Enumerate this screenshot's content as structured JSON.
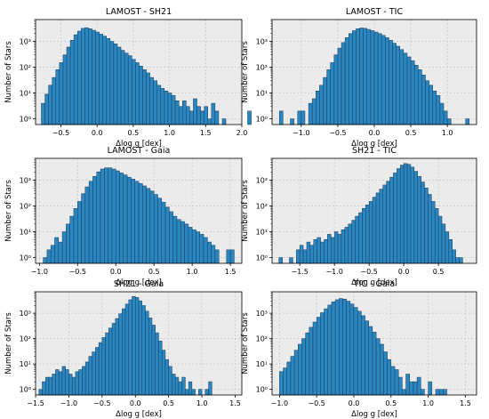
{
  "chart_data": [
    {
      "type": "bar",
      "title": "LAMOST - SH21",
      "xlabel": "Δlog g [dex]",
      "ylabel": "Number of Stars",
      "yscale": "log",
      "xlim": [
        -0.85,
        2.0
      ],
      "ylim": [
        0.6,
        7000
      ],
      "xticks": [
        -0.5,
        0.0,
        0.5,
        1.0,
        1.5,
        2.0
      ],
      "x_tick_labels": [
        "−0.5",
        "0.0",
        "0.5",
        "1.0",
        "1.5",
        "2.0"
      ],
      "y_tick_labels": [
        "10⁰",
        "10¹",
        "10²",
        "10³"
      ],
      "bin_start": -0.77,
      "bin_width": 0.05,
      "values": [
        4,
        9,
        20,
        40,
        80,
        150,
        300,
        600,
        1100,
        1800,
        2500,
        3200,
        3400,
        3100,
        2700,
        2300,
        1900,
        1600,
        1300,
        1000,
        800,
        600,
        450,
        350,
        280,
        200,
        150,
        110,
        80,
        60,
        40,
        30,
        20,
        15,
        12,
        10,
        8,
        5,
        3,
        5,
        3,
        2,
        6,
        3,
        2,
        3,
        1,
        4,
        2,
        0,
        1,
        0,
        0,
        0,
        0,
        0,
        0,
        2
      ]
    },
    {
      "type": "bar",
      "title": "LAMOST - TIC",
      "xlabel": "Δlog g [dex]",
      "ylabel": "Number of Stars",
      "yscale": "log",
      "xlim": [
        -1.4,
        1.4
      ],
      "ylim": [
        0.6,
        7000
      ],
      "xticks": [
        -1.0,
        -0.5,
        0.0,
        0.5,
        1.0
      ],
      "x_tick_labels": [
        "−1.0",
        "−0.5",
        "0.0",
        "0.5",
        "1.0"
      ],
      "y_tick_labels": [
        "10⁰",
        "10¹",
        "10²",
        "10³"
      ],
      "bin_start": -1.3,
      "bin_width": 0.05,
      "values": [
        2,
        0,
        0,
        1,
        0,
        2,
        2,
        0,
        4,
        6,
        12,
        20,
        40,
        80,
        150,
        300,
        550,
        900,
        1400,
        2000,
        2600,
        3100,
        3300,
        3200,
        2900,
        2600,
        2300,
        2000,
        1700,
        1400,
        1100,
        850,
        650,
        480,
        350,
        250,
        180,
        120,
        80,
        50,
        30,
        20,
        12,
        8,
        4,
        2,
        1,
        0,
        0,
        0,
        0,
        1
      ]
    },
    {
      "type": "bar",
      "title": "LAMOST - Gaia",
      "xlabel": "Δlog g [dex]",
      "ylabel": "Number of Stars",
      "yscale": "log",
      "xlim": [
        -1.05,
        1.65
      ],
      "ylim": [
        0.6,
        7000
      ],
      "xticks": [
        -1.0,
        -0.5,
        0.0,
        0.5,
        1.0,
        1.5
      ],
      "x_tick_labels": [
        "−1.0",
        "−0.5",
        "0.0",
        "0.5",
        "1.0",
        "1.5"
      ],
      "y_tick_labels": [
        "10⁰",
        "10¹",
        "10²",
        "10³"
      ],
      "bin_start": -0.95,
      "bin_width": 0.05,
      "values": [
        1,
        2,
        3,
        6,
        4,
        10,
        20,
        40,
        80,
        150,
        300,
        550,
        900,
        1400,
        2100,
        2700,
        3000,
        3000,
        2700,
        2300,
        1900,
        1600,
        1300,
        1100,
        900,
        750,
        600,
        480,
        380,
        280,
        200,
        140,
        90,
        60,
        40,
        30,
        25,
        20,
        15,
        12,
        10,
        8,
        6,
        4,
        3,
        2,
        0,
        0,
        2,
        2
      ]
    },
    {
      "type": "bar",
      "title": "SH21 - TIC",
      "xlabel": "Δlog g [dex]",
      "ylabel": "Number of Stars",
      "yscale": "log",
      "xlim": [
        -1.9,
        1.05
      ],
      "ylim": [
        0.6,
        7000
      ],
      "xticks": [
        -1.5,
        -1.0,
        -0.5,
        0.0,
        0.5
      ],
      "x_tick_labels": [
        "−1.5",
        "−1.0",
        "−0.5",
        "0.0",
        "0.5"
      ],
      "y_tick_labels": [
        "10⁰",
        "10¹",
        "10²",
        "10³"
      ],
      "bin_start": -1.8,
      "bin_width": 0.05,
      "values": [
        1,
        0,
        0,
        1,
        0,
        2,
        3,
        2,
        4,
        3,
        5,
        6,
        4,
        5,
        8,
        6,
        10,
        8,
        12,
        15,
        20,
        28,
        40,
        55,
        80,
        110,
        150,
        220,
        320,
        450,
        650,
        900,
        1300,
        1900,
        2800,
        3800,
        4400,
        4100,
        3200,
        2200,
        1400,
        850,
        500,
        280,
        150,
        80,
        40,
        20,
        10,
        5,
        2,
        1,
        1
      ]
    },
    {
      "type": "bar",
      "title": "SH21 - Gaia",
      "xlabel": "Δlog g [dex]",
      "ylabel": "Number of Stars",
      "yscale": "log",
      "xlim": [
        -1.5,
        1.6
      ],
      "ylim": [
        0.6,
        7000
      ],
      "xticks": [
        -1.5,
        -1.0,
        -0.5,
        0.0,
        0.5,
        1.0,
        1.5
      ],
      "x_tick_labels": [
        "−1.5",
        "−1.0",
        "−0.5",
        "0.0",
        "0.5",
        "1.0",
        "1.5"
      ],
      "y_tick_labels": [
        "10⁰",
        "10¹",
        "10²",
        "10³"
      ],
      "bin_start": -1.45,
      "bin_width": 0.05,
      "values": [
        1,
        2,
        3,
        3,
        4,
        6,
        5,
        8,
        6,
        4,
        3,
        5,
        6,
        8,
        12,
        20,
        30,
        45,
        70,
        110,
        170,
        260,
        400,
        620,
        950,
        1500,
        2300,
        3400,
        4600,
        4200,
        3100,
        2000,
        1200,
        650,
        340,
        170,
        80,
        35,
        15,
        8,
        4,
        3,
        2,
        3,
        1,
        2,
        1,
        0,
        1,
        0,
        1,
        2
      ]
    },
    {
      "type": "bar",
      "title": "TIC - Gaia",
      "xlabel": "Δlog g [dex]",
      "ylabel": "Number of Stars",
      "yscale": "log",
      "xlim": [
        -1.1,
        1.65
      ],
      "ylim": [
        0.6,
        7000
      ],
      "xticks": [
        -1.0,
        -0.5,
        0.0,
        0.5,
        1.0,
        1.5
      ],
      "x_tick_labels": [
        "−1.0",
        "−0.5",
        "0.0",
        "0.5",
        "1.0",
        "1.5"
      ],
      "y_tick_labels": [
        "10⁰",
        "10¹",
        "10²",
        "10³"
      ],
      "bin_start": -1.0,
      "bin_width": 0.05,
      "values": [
        5,
        7,
        12,
        20,
        35,
        60,
        100,
        170,
        280,
        450,
        700,
        1050,
        1500,
        2100,
        2800,
        3400,
        3800,
        3600,
        3000,
        2300,
        1700,
        1200,
        800,
        500,
        300,
        180,
        100,
        60,
        30,
        15,
        8,
        6,
        3,
        1,
        4,
        2,
        2,
        3,
        1,
        0,
        2,
        0,
        1,
        1,
        1
      ]
    }
  ]
}
